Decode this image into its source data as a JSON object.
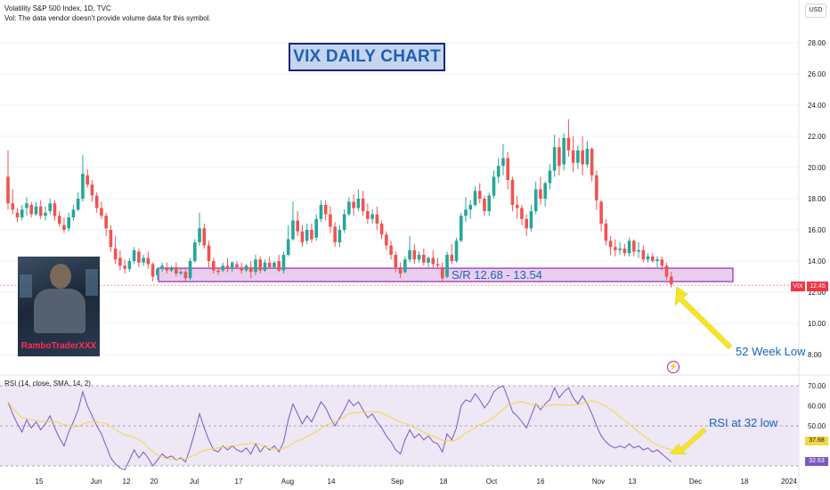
{
  "header": {
    "title": "Volatility S&P 500 Index, 1D, TVC",
    "vol_note": "Vol: The data vendor doesn't provide volume data for this symbol.",
    "currency_button": "USD"
  },
  "colors": {
    "up": "#26a69a",
    "down": "#ef5350",
    "sr_box_fill": "#e1bee7",
    "sr_box_stroke": "#9c27b0",
    "annotation_text": "#1565c0",
    "arrow": "#f5e52a",
    "rsi_line": "#7e57c2",
    "rsi_ma": "#f5d742",
    "rsi_band": "#ede7f6",
    "title_box_fill": "#c5d5ee",
    "title_box_stroke": "#1a237e",
    "title_box_text": "#1f5fb8",
    "last_price_bg": "#f23645"
  },
  "annotations": {
    "chart_title": "VIX DAILY CHART",
    "sr_label": "S/R 12.68 - 13.54",
    "low_label": "52 Week Low",
    "rsi_label": "RSI at 32 low",
    "avatar_name": "RamboTraderXXX",
    "lightning_icon": "lightning-icon"
  },
  "rsi_panel": {
    "label": "RSI (14, close, SMA, 14, 2)",
    "value_ma": "37.68",
    "value_rsi": "32.63"
  },
  "chart_data": {
    "type": "candlestick",
    "symbol": "VIX",
    "last_price": "12.45",
    "ylim": [
      7.5,
      30
    ],
    "y_ticks": [
      "28.00",
      "26.00",
      "24.00",
      "22.00",
      "20.00",
      "18.00",
      "16.00",
      "14.00",
      "12.00",
      "10.00",
      "8.00"
    ],
    "x_ticks": [
      "15",
      "Jun",
      "12",
      "20",
      "Jul",
      "17",
      "Aug",
      "14",
      "Sep",
      "18",
      "Oct",
      "16",
      "Nov",
      "13",
      "Dec",
      "18",
      "2024"
    ],
    "sr_zone": [
      12.68,
      13.54
    ],
    "candles": [
      [
        19.4,
        21.1,
        17.7,
        17.3
      ],
      [
        17.7,
        18.6,
        17.3,
        17.0
      ],
      [
        17.1,
        17.4,
        16.8,
        16.5
      ],
      [
        16.8,
        17.6,
        17.3,
        16.6
      ],
      [
        17.4,
        18.1,
        17.7,
        16.9
      ],
      [
        17.6,
        17.8,
        17.0,
        16.8
      ],
      [
        17.0,
        17.8,
        17.5,
        16.9
      ],
      [
        17.5,
        17.9,
        16.9,
        16.7
      ],
      [
        16.9,
        17.5,
        17.1,
        16.6
      ],
      [
        17.2,
        18.0,
        17.7,
        17.0
      ],
      [
        17.7,
        17.9,
        16.9,
        16.6
      ],
      [
        16.9,
        17.2,
        16.4,
        16.2
      ],
      [
        16.3,
        16.8,
        16.0,
        15.8
      ],
      [
        16.1,
        17.1,
        16.8,
        15.9
      ],
      [
        16.8,
        17.6,
        17.3,
        16.6
      ],
      [
        17.3,
        18.4,
        18.0,
        17.2
      ],
      [
        18.0,
        20.8,
        19.6,
        17.8
      ],
      [
        19.5,
        19.9,
        18.9,
        18.7
      ],
      [
        18.9,
        19.2,
        18.2,
        17.8
      ],
      [
        18.2,
        18.4,
        17.4,
        17.1
      ],
      [
        17.4,
        17.8,
        16.9,
        16.7
      ],
      [
        16.9,
        17.1,
        16.1,
        15.6
      ],
      [
        16.0,
        16.3,
        14.9,
        14.6
      ],
      [
        14.8,
        15.6,
        14.1,
        13.8
      ],
      [
        14.2,
        14.7,
        13.7,
        13.4
      ],
      [
        13.7,
        14.1,
        13.5,
        13.2
      ],
      [
        13.5,
        14.2,
        14.0,
        13.3
      ],
      [
        14.0,
        14.9,
        14.7,
        13.8
      ],
      [
        14.6,
        14.8,
        13.9,
        13.6
      ],
      [
        13.9,
        14.4,
        14.2,
        13.7
      ],
      [
        14.2,
        14.6,
        13.8,
        13.5
      ],
      [
        13.8,
        13.9,
        13.0,
        12.7
      ],
      [
        13.1,
        13.6,
        13.5,
        12.8
      ],
      [
        13.5,
        13.9,
        13.7,
        13.3
      ],
      [
        13.6,
        13.9,
        13.4,
        13.2
      ],
      [
        13.4,
        13.7,
        13.6,
        13.3
      ],
      [
        13.6,
        13.9,
        13.2,
        13.0
      ],
      [
        13.2,
        13.5,
        13.3,
        13.1
      ],
      [
        13.3,
        13.6,
        12.9,
        12.7
      ],
      [
        12.9,
        14.2,
        14.0,
        12.8
      ],
      [
        14.0,
        15.4,
        15.2,
        13.9
      ],
      [
        15.2,
        17.1,
        16.1,
        15.0
      ],
      [
        16.1,
        16.4,
        15.0,
        14.8
      ],
      [
        15.0,
        15.3,
        14.0,
        13.6
      ],
      [
        14.0,
        14.2,
        13.4,
        13.2
      ],
      [
        13.4,
        13.6,
        13.3,
        13.1
      ],
      [
        13.4,
        13.9,
        13.7,
        13.3
      ],
      [
        13.7,
        14.2,
        13.5,
        13.3
      ],
      [
        13.5,
        14.0,
        13.9,
        13.3
      ],
      [
        13.8,
        14.0,
        13.6,
        13.5
      ],
      [
        13.6,
        13.9,
        13.4,
        13.2
      ],
      [
        13.4,
        13.8,
        13.7,
        13.3
      ],
      [
        13.6,
        14.0,
        13.3,
        12.9
      ],
      [
        13.3,
        14.4,
        14.1,
        13.1
      ],
      [
        14.1,
        14.3,
        13.4,
        13.2
      ],
      [
        13.4,
        14.1,
        13.9,
        13.3
      ],
      [
        13.9,
        14.3,
        13.6,
        13.5
      ],
      [
        13.6,
        14.0,
        13.9,
        13.5
      ],
      [
        14.0,
        14.4,
        13.4,
        13.3
      ],
      [
        13.4,
        14.6,
        14.4,
        13.2
      ],
      [
        14.4,
        16.3,
        15.4,
        14.3
      ],
      [
        15.4,
        17.8,
        16.6,
        15.3
      ],
      [
        16.6,
        17.2,
        15.9,
        15.6
      ],
      [
        15.9,
        16.3,
        15.2,
        14.9
      ],
      [
        15.3,
        16.4,
        16.0,
        15.1
      ],
      [
        16.0,
        16.4,
        15.4,
        15.2
      ],
      [
        15.5,
        17.0,
        16.7,
        15.3
      ],
      [
        16.7,
        17.9,
        17.6,
        16.5
      ],
      [
        17.6,
        17.9,
        17.0,
        16.6
      ],
      [
        17.0,
        17.5,
        16.2,
        15.8
      ],
      [
        16.2,
        16.5,
        15.2,
        14.9
      ],
      [
        15.2,
        16.3,
        16.0,
        14.9
      ],
      [
        16.0,
        17.3,
        17.0,
        15.8
      ],
      [
        17.0,
        18.1,
        17.8,
        16.9
      ],
      [
        17.8,
        18.3,
        17.4,
        16.9
      ],
      [
        17.4,
        18.6,
        18.0,
        17.2
      ],
      [
        18.0,
        18.5,
        17.2,
        16.9
      ],
      [
        17.2,
        17.7,
        16.7,
        16.4
      ],
      [
        16.7,
        17.3,
        17.0,
        16.4
      ],
      [
        17.0,
        17.5,
        16.4,
        16.0
      ],
      [
        16.4,
        16.6,
        15.7,
        15.4
      ],
      [
        15.7,
        15.9,
        15.0,
        14.7
      ],
      [
        15.0,
        15.3,
        14.4,
        14.1
      ],
      [
        14.4,
        14.6,
        13.6,
        13.3
      ],
      [
        13.6,
        13.9,
        13.2,
        12.9
      ],
      [
        13.3,
        14.3,
        14.1,
        13.2
      ],
      [
        14.1,
        15.6,
        14.7,
        13.9
      ],
      [
        14.7,
        15.1,
        14.1,
        13.8
      ],
      [
        14.1,
        14.6,
        14.4,
        13.9
      ],
      [
        14.4,
        14.8,
        13.9,
        13.7
      ],
      [
        13.9,
        14.3,
        14.2,
        13.6
      ],
      [
        14.2,
        14.7,
        13.8,
        13.6
      ],
      [
        13.8,
        14.2,
        13.7,
        13.5
      ],
      [
        13.6,
        13.9,
        12.9,
        12.7
      ],
      [
        13.0,
        14.6,
        14.4,
        12.9
      ],
      [
        14.4,
        15.1,
        14.0,
        13.8
      ],
      [
        14.0,
        15.5,
        15.3,
        13.9
      ],
      [
        15.3,
        17.1,
        16.9,
        15.2
      ],
      [
        16.9,
        18.1,
        17.3,
        16.5
      ],
      [
        17.3,
        17.9,
        17.6,
        16.7
      ],
      [
        17.6,
        18.8,
        18.5,
        17.5
      ],
      [
        18.5,
        19.0,
        18.0,
        17.7
      ],
      [
        18.0,
        18.2,
        17.2,
        16.9
      ],
      [
        17.2,
        18.4,
        18.2,
        16.9
      ],
      [
        18.2,
        19.8,
        19.4,
        18.0
      ],
      [
        19.4,
        20.6,
        20.1,
        19.0
      ],
      [
        20.1,
        21.5,
        20.6,
        19.5
      ],
      [
        20.6,
        21.0,
        19.2,
        18.6
      ],
      [
        19.2,
        19.4,
        17.6,
        17.2
      ],
      [
        17.6,
        18.2,
        17.4,
        16.7
      ],
      [
        17.4,
        17.6,
        16.7,
        16.3
      ],
      [
        16.7,
        17.0,
        16.1,
        15.6
      ],
      [
        16.1,
        17.6,
        17.2,
        15.9
      ],
      [
        17.2,
        19.1,
        18.6,
        17.0
      ],
      [
        18.6,
        19.4,
        18.0,
        17.6
      ],
      [
        18.0,
        19.1,
        19.0,
        17.5
      ],
      [
        19.0,
        20.2,
        19.8,
        18.6
      ],
      [
        19.8,
        22.1,
        21.3,
        19.4
      ],
      [
        21.3,
        21.9,
        20.1,
        19.5
      ],
      [
        20.2,
        22.2,
        21.9,
        19.8
      ],
      [
        21.9,
        23.1,
        21.1,
        20.7
      ],
      [
        21.1,
        22.0,
        20.3,
        19.7
      ],
      [
        20.3,
        21.4,
        21.1,
        19.9
      ],
      [
        21.1,
        22.0,
        20.2,
        19.5
      ],
      [
        20.2,
        21.7,
        21.2,
        20.0
      ],
      [
        21.2,
        21.3,
        19.5,
        19.1
      ],
      [
        19.5,
        19.8,
        17.9,
        17.3
      ],
      [
        17.8,
        17.9,
        16.4,
        15.9
      ],
      [
        16.4,
        16.7,
        15.3,
        15.0
      ],
      [
        15.3,
        15.6,
        14.9,
        14.4
      ],
      [
        14.9,
        15.4,
        14.7,
        14.3
      ],
      [
        14.7,
        15.2,
        14.8,
        14.4
      ],
      [
        14.8,
        15.1,
        14.5,
        14.3
      ],
      [
        14.5,
        15.5,
        15.3,
        14.3
      ],
      [
        15.3,
        15.4,
        14.6,
        14.3
      ],
      [
        14.6,
        15.2,
        14.7,
        14.2
      ],
      [
        14.7,
        15.0,
        14.1,
        13.9
      ],
      [
        14.1,
        14.5,
        14.3,
        13.9
      ],
      [
        14.3,
        14.5,
        14.0,
        13.9
      ],
      [
        14.0,
        14.3,
        14.1,
        13.6
      ],
      [
        14.1,
        14.3,
        13.7,
        13.4
      ],
      [
        13.7,
        13.9,
        13.0,
        12.8
      ],
      [
        13.0,
        13.3,
        12.5,
        12.3
      ]
    ],
    "rsi": [
      62,
      56,
      51,
      47,
      53,
      49,
      52,
      48,
      51,
      55,
      49,
      44,
      40,
      47,
      52,
      58,
      67,
      60,
      55,
      50,
      46,
      40,
      34,
      31,
      29,
      28,
      33,
      38,
      34,
      37,
      34,
      30,
      33,
      36,
      34,
      35,
      33,
      34,
      32,
      39,
      47,
      56,
      49,
      43,
      38,
      37,
      40,
      38,
      40,
      38,
      37,
      39,
      36,
      41,
      37,
      40,
      38,
      40,
      37,
      42,
      53,
      61,
      56,
      51,
      55,
      52,
      57,
      62,
      59,
      54,
      50,
      54,
      58,
      63,
      60,
      62,
      58,
      54,
      56,
      52,
      49,
      45,
      42,
      38,
      36,
      43,
      48,
      44,
      46,
      43,
      45,
      42,
      41,
      37,
      46,
      43,
      49,
      60,
      63,
      62,
      66,
      63,
      59,
      62,
      67,
      69,
      70,
      64,
      57,
      55,
      52,
      49,
      55,
      61,
      58,
      61,
      63,
      69,
      64,
      67,
      69,
      64,
      61,
      65,
      61,
      56,
      50,
      45,
      42,
      40,
      39,
      40,
      39,
      41,
      39,
      40,
      38,
      39,
      37,
      38,
      36,
      34,
      32
    ],
    "rsi_ylim": [
      30,
      70
    ],
    "rsi_ticks": [
      "70.00",
      "60.00",
      "50.00"
    ],
    "rsi_bands": [
      70,
      50,
      30
    ]
  }
}
